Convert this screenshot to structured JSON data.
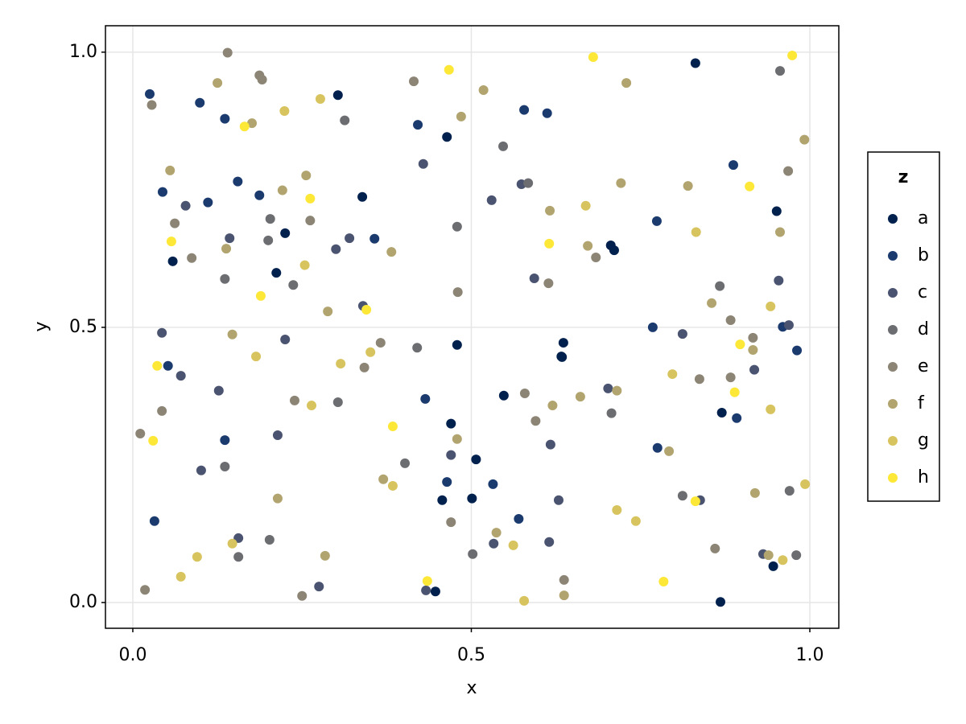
{
  "chart_data": {
    "type": "scatter",
    "x_label": "x",
    "y_label": "y",
    "legend_title": "z",
    "legend_position": "right",
    "grid": true,
    "xlim": [
      -0.0404,
      1.0428
    ],
    "ylim": [
      -0.0468,
      1.048
    ],
    "xticks": [
      {
        "value": 0,
        "label": "0.0"
      },
      0.5,
      {
        "value": 1,
        "label": "1.0"
      }
    ],
    "yticks": [
      {
        "value": 0,
        "label": "0.0"
      },
      0.5,
      {
        "value": 1,
        "label": "1.0"
      }
    ],
    "series": [
      {
        "name": "a",
        "color": "#00204d",
        "x": [
          0.303,
          0.464,
          0.831,
          0.951,
          0.706,
          0.711,
          0.87,
          0.548,
          0.636,
          0.633,
          0.634,
          0.479,
          0.47,
          0.507,
          0.457,
          0.501,
          0.868,
          0.946,
          0.447,
          0.225,
          0.212,
          0.339,
          0.059
        ],
        "y": [
          0.922,
          0.846,
          0.98,
          0.711,
          0.649,
          0.64,
          0.345,
          0.376,
          0.472,
          0.447,
          0.446,
          0.468,
          0.325,
          0.26,
          0.186,
          0.189,
          0.001,
          0.066,
          0.02,
          0.671,
          0.599,
          0.737,
          0.62
        ]
      },
      {
        "name": "b",
        "color": "#1b3a6e",
        "x": [
          0.025,
          0.099,
          0.136,
          0.421,
          0.578,
          0.612,
          0.887,
          0.774,
          0.96,
          0.768,
          0.981,
          0.892,
          0.432,
          0.464,
          0.532,
          0.57,
          0.775,
          0.032,
          0.136,
          0.052,
          0.155,
          0.187,
          0.111,
          0.044,
          0.357
        ],
        "y": [
          0.924,
          0.908,
          0.879,
          0.868,
          0.895,
          0.889,
          0.795,
          0.693,
          0.501,
          0.5,
          0.458,
          0.335,
          0.37,
          0.219,
          0.215,
          0.152,
          0.281,
          0.148,
          0.295,
          0.43,
          0.765,
          0.74,
          0.727,
          0.746,
          0.661
        ]
      },
      {
        "name": "c",
        "color": "#4a5370",
        "x": [
          0.429,
          0.53,
          0.574,
          0.593,
          0.954,
          0.969,
          0.812,
          0.918,
          0.702,
          0.47,
          0.629,
          0.617,
          0.615,
          0.838,
          0.931,
          0.433,
          0.275,
          0.156,
          0.101,
          0.214,
          0.127,
          0.225,
          0.043,
          0.071,
          0.34,
          0.078,
          0.143,
          0.3,
          0.32,
          0.533
        ],
        "y": [
          0.797,
          0.731,
          0.76,
          0.589,
          0.585,
          0.504,
          0.488,
          0.423,
          0.389,
          0.268,
          0.186,
          0.287,
          0.11,
          0.186,
          0.088,
          0.022,
          0.029,
          0.117,
          0.24,
          0.304,
          0.385,
          0.478,
          0.49,
          0.412,
          0.539,
          0.721,
          0.662,
          0.642,
          0.662,
          0.107
        ]
      },
      {
        "name": "d",
        "color": "#6b6d71",
        "x": [
          0.313,
          0.547,
          0.584,
          0.956,
          0.479,
          0.867,
          0.707,
          0.42,
          0.402,
          0.502,
          0.812,
          0.97,
          0.98,
          0.202,
          0.156,
          0.136,
          0.303,
          0.237,
          0.203,
          0.2,
          0.136
        ],
        "y": [
          0.876,
          0.829,
          0.762,
          0.966,
          0.683,
          0.575,
          0.344,
          0.463,
          0.253,
          0.088,
          0.194,
          0.203,
          0.086,
          0.114,
          0.083,
          0.247,
          0.364,
          0.577,
          0.697,
          0.658,
          0.588
        ]
      },
      {
        "name": "e",
        "color": "#8c8575",
        "x": [
          0.028,
          0.14,
          0.187,
          0.191,
          0.415,
          0.968,
          0.684,
          0.48,
          0.614,
          0.883,
          0.916,
          0.883,
          0.837,
          0.579,
          0.595,
          0.366,
          0.342,
          0.239,
          0.47,
          0.86,
          0.637,
          0.25,
          0.018,
          0.043,
          0.011,
          0.062,
          0.087,
          0.262
        ],
        "y": [
          0.904,
          0.999,
          0.958,
          0.95,
          0.947,
          0.784,
          0.627,
          0.564,
          0.58,
          0.513,
          0.481,
          0.409,
          0.406,
          0.38,
          0.33,
          0.472,
          0.427,
          0.367,
          0.146,
          0.098,
          0.041,
          0.012,
          0.023,
          0.348,
          0.307,
          0.689,
          0.626,
          0.694
        ]
      },
      {
        "name": "f",
        "color": "#b2a46f",
        "x": [
          0.125,
          0.176,
          0.485,
          0.518,
          0.729,
          0.992,
          0.82,
          0.721,
          0.956,
          0.616,
          0.672,
          0.855,
          0.916,
          0.62,
          0.661,
          0.715,
          0.479,
          0.37,
          0.537,
          0.792,
          0.919,
          0.939,
          0.637,
          0.284,
          0.214,
          0.147,
          0.288,
          0.382,
          0.256,
          0.221,
          0.055,
          0.138
        ],
        "y": [
          0.944,
          0.871,
          0.883,
          0.931,
          0.944,
          0.841,
          0.757,
          0.762,
          0.673,
          0.712,
          0.648,
          0.544,
          0.459,
          0.358,
          0.374,
          0.385,
          0.297,
          0.224,
          0.127,
          0.275,
          0.199,
          0.086,
          0.013,
          0.085,
          0.189,
          0.487,
          0.529,
          0.637,
          0.776,
          0.749,
          0.785,
          0.643
        ]
      },
      {
        "name": "g",
        "color": "#d8c45f",
        "x": [
          0.224,
          0.277,
          0.832,
          0.669,
          0.942,
          0.797,
          0.942,
          0.307,
          0.351,
          0.264,
          0.182,
          0.384,
          0.715,
          0.743,
          0.993,
          0.96,
          0.562,
          0.578,
          0.147,
          0.095,
          0.071,
          0.254
        ],
        "y": [
          0.893,
          0.915,
          0.673,
          0.721,
          0.538,
          0.415,
          0.351,
          0.434,
          0.455,
          0.358,
          0.447,
          0.212,
          0.168,
          0.148,
          0.215,
          0.077,
          0.104,
          0.003,
          0.107,
          0.083,
          0.047,
          0.613
        ]
      },
      {
        "name": "h",
        "color": "#fde737",
        "x": [
          0.165,
          0.467,
          0.68,
          0.974,
          0.911,
          0.615,
          0.897,
          0.889,
          0.831,
          0.784,
          0.435,
          0.03,
          0.036,
          0.189,
          0.345,
          0.384,
          0.262,
          0.057
        ],
        "y": [
          0.865,
          0.968,
          0.991,
          0.994,
          0.756,
          0.652,
          0.469,
          0.382,
          0.184,
          0.038,
          0.039,
          0.294,
          0.43,
          0.557,
          0.532,
          0.32,
          0.734,
          0.656
        ]
      }
    ]
  }
}
